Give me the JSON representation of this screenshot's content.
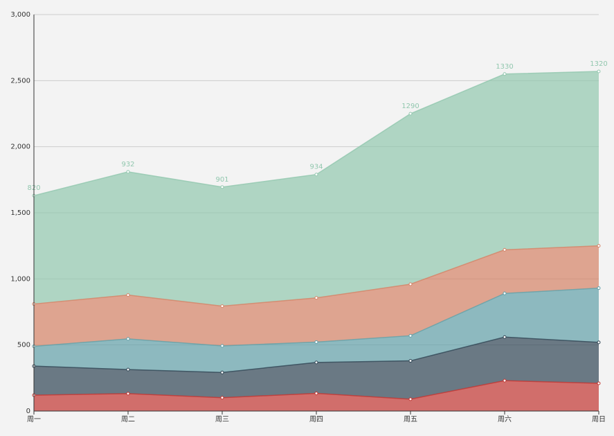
{
  "chart_data": {
    "type": "stacked-area",
    "categories": [
      "周一",
      "周二",
      "周三",
      "周四",
      "周五",
      "周六",
      "周日"
    ],
    "series": [
      {
        "color": "#c23531",
        "values": [
          120,
          132,
          101,
          134,
          90,
          230,
          210
        ]
      },
      {
        "color": "#2f4554",
        "values": [
          220,
          182,
          191,
          234,
          290,
          330,
          310
        ]
      },
      {
        "color": "#61a0a8",
        "values": [
          150,
          232,
          201,
          154,
          190,
          330,
          410
        ]
      },
      {
        "color": "#d48265",
        "values": [
          320,
          332,
          301,
          334,
          390,
          330,
          320
        ]
      },
      {
        "color": "#91c7ae",
        "values": [
          820,
          932,
          901,
          934,
          1290,
          1330,
          1320
        ],
        "show_labels": true
      }
    ],
    "ylim": [
      0,
      3000
    ],
    "yticks": [
      0,
      500,
      {
        "value": 1000,
        "label": "1,000"
      },
      {
        "value": 1500,
        "label": "1,500"
      },
      {
        "value": 2000,
        "label": "2,000"
      },
      {
        "value": 2500,
        "label": "2,500"
      },
      {
        "value": 3000,
        "label": "3,000"
      }
    ],
    "grid": true
  }
}
